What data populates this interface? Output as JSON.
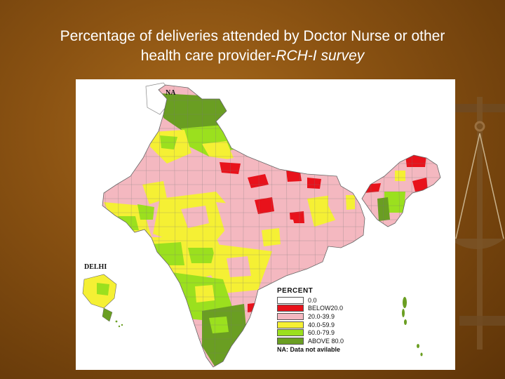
{
  "slide": {
    "title_line1": "Percentage of deliveries attended by Doctor Nurse or other",
    "title_line2_plain": "health care provider-",
    "title_line2_italic": "RCH-I survey"
  },
  "map": {
    "na_label": "NA",
    "delhi_label": "DELHI",
    "legend": {
      "heading": "PERCENT",
      "items": [
        {
          "label": "0.0",
          "color": "#ffffff"
        },
        {
          "label": "BELOW20.0",
          "color": "#e8121b"
        },
        {
          "label": "20.0-39.9",
          "color": "#f4b8c0"
        },
        {
          "label": "40.0-59.9",
          "color": "#f5f034"
        },
        {
          "label": "60.0-79.9",
          "color": "#9be01e"
        },
        {
          "label": "ABOVE 80.0",
          "color": "#6a9e22"
        }
      ],
      "note": "NA: Data not avilable"
    }
  },
  "colors": {
    "background": "#8a5212",
    "title_text": "#ffffff",
    "red": "#e8121b",
    "pink": "#f4b8c0",
    "yellow": "#f5f034",
    "light_green": "#9be01e",
    "dark_green": "#6a9e22"
  }
}
